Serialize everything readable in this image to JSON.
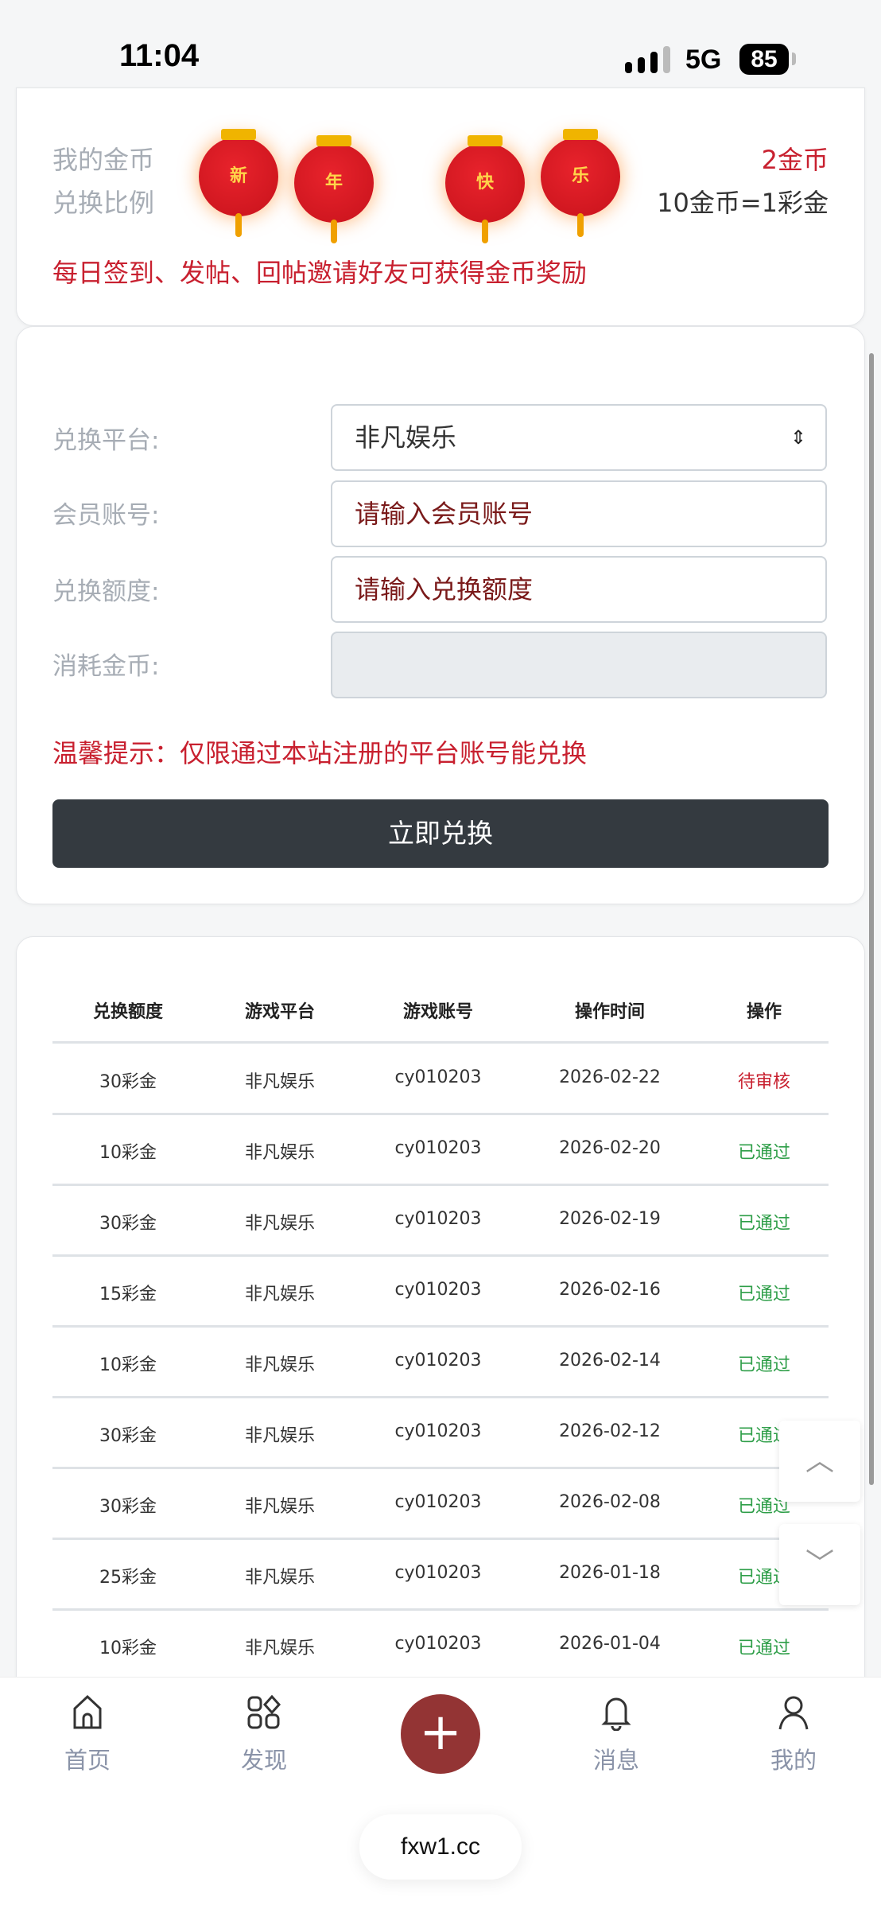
{
  "status_bar": {
    "time": "11:04",
    "network": "5G",
    "battery": "85"
  },
  "info_card": {
    "my_coins_label": "我的金币",
    "my_coins_value": "2金币",
    "ratio_label": "兑换比例",
    "ratio_value": "10金币=1彩金",
    "tip": "每日签到、发帖、回帖邀请好友可获得金币奖励",
    "lanterns": [
      "新",
      "年",
      "快",
      "乐"
    ]
  },
  "form": {
    "platform_label": "兑换平台:",
    "platform_value": "非凡娱乐",
    "account_label": "会员账号:",
    "account_placeholder": "请输入会员账号",
    "amount_label": "兑换额度:",
    "amount_placeholder": "请输入兑换额度",
    "coins_label": "消耗金币:",
    "coins_value": "",
    "notice": "温馨提示：仅限通过本站注册的平台账号能兑换",
    "submit_label": "立即兑换"
  },
  "table": {
    "headers": [
      "兑换额度",
      "游戏平台",
      "游戏账号",
      "操作时间",
      "操作"
    ],
    "rows": [
      [
        "30彩金",
        "非凡娱乐",
        "cy010203",
        "2026-02-22",
        "待审核"
      ],
      [
        "10彩金",
        "非凡娱乐",
        "cy010203",
        "2026-02-20",
        "已通过"
      ],
      [
        "30彩金",
        "非凡娱乐",
        "cy010203",
        "2026-02-19",
        "已通过"
      ],
      [
        "15彩金",
        "非凡娱乐",
        "cy010203",
        "2026-02-16",
        "已通过"
      ],
      [
        "10彩金",
        "非凡娱乐",
        "cy010203",
        "2026-02-14",
        "已通过"
      ],
      [
        "30彩金",
        "非凡娱乐",
        "cy010203",
        "2026-02-12",
        "已通过"
      ],
      [
        "30彩金",
        "非凡娱乐",
        "cy010203",
        "2026-02-08",
        "已通过"
      ],
      [
        "25彩金",
        "非凡娱乐",
        "cy010203",
        "2026-01-18",
        "已通过"
      ],
      [
        "10彩金",
        "非凡娱乐",
        "cy010203",
        "2026-01-04",
        "已通过"
      ]
    ],
    "status_colors": {
      "待审核": "#c8202f",
      "已通过": "#2e9e48"
    }
  },
  "bottom_nav": {
    "items": [
      {
        "label": "首页",
        "icon": "home-icon"
      },
      {
        "label": "发现",
        "icon": "discover-icon"
      },
      {
        "label": "消息",
        "icon": "bell-icon"
      },
      {
        "label": "我的",
        "icon": "user-icon"
      }
    ],
    "plus_icon": "plus-icon"
  },
  "url_bar": {
    "domain": "fxw1.cc"
  },
  "accent": "#933434"
}
